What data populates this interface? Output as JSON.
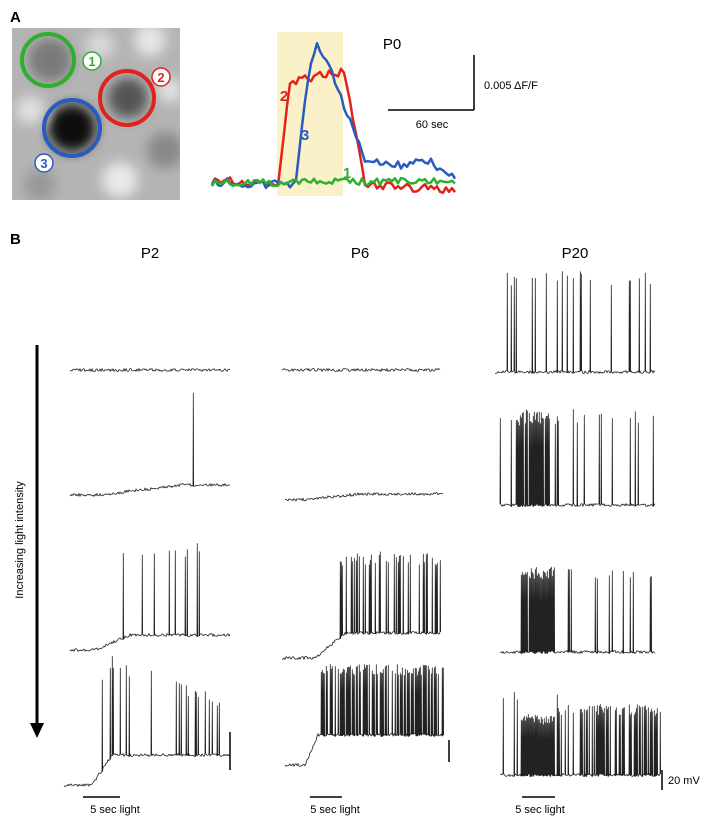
{
  "panel_a": {
    "label": "A",
    "cells": [
      "1",
      "2",
      "3"
    ],
    "title": "P0",
    "scale_y": "0.005 ΔF/F",
    "scale_x": "60 sec",
    "trace_labels": [
      "2",
      "3",
      "1"
    ]
  },
  "panel_b": {
    "label": "B",
    "columns": [
      "P2",
      "P6",
      "P20"
    ],
    "axis_label": "Increasing light intensity",
    "stimulus_labels": [
      "5 sec light",
      "5 sec light",
      "5 sec light"
    ],
    "scale_label": "20 mV"
  }
}
